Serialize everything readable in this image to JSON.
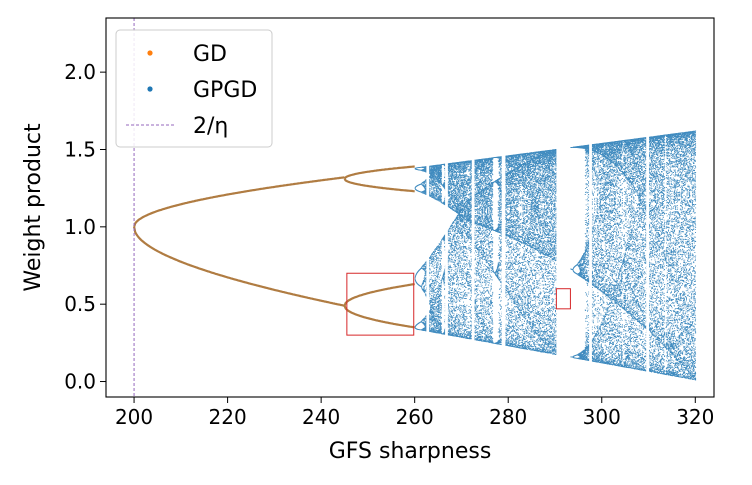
{
  "chart_data": {
    "type": "scatter",
    "title": "",
    "xlabel": "GFS sharpness",
    "ylabel": "Weight product",
    "xlim": [
      194,
      324
    ],
    "ylim": [
      -0.1,
      2.35
    ],
    "x_ticks": [
      200,
      220,
      240,
      260,
      280,
      300,
      320
    ],
    "x_tick_labels": [
      "200",
      "220",
      "240",
      "260",
      "280",
      "300",
      "320"
    ],
    "y_ticks": [
      0.0,
      0.5,
      1.0,
      1.5,
      2.0
    ],
    "y_tick_labels": [
      "0.0",
      "0.5",
      "1.0",
      "1.5",
      "2.0"
    ],
    "grid": false,
    "legend_placement": "upper-left",
    "series": [
      {
        "name": "GD",
        "kind": "scatter",
        "color": "#ff7f0e",
        "x_range": [
          200,
          260
        ],
        "note_points": "period-doubling bifurcation branches"
      },
      {
        "name": "GPGD",
        "kind": "scatter",
        "color": "#1f77b4",
        "x_range": [
          200,
          320
        ]
      },
      {
        "name": "2/η",
        "kind": "vline",
        "color": "#9467bd",
        "x": 200
      }
    ],
    "legend": [
      {
        "label": "GD",
        "color": "#ff7f0e",
        "marker": "dot"
      },
      {
        "label": "GPGD",
        "color": "#1f77b4",
        "marker": "dot"
      },
      {
        "label": "2/η",
        "color": "#9467bd",
        "marker": "dashed-line"
      }
    ],
    "annotations": [
      {
        "type": "rectangle",
        "color": "#d62728",
        "x_range": [
          245.5,
          259.8
        ],
        "y_range": [
          0.3,
          0.7
        ]
      },
      {
        "type": "rectangle",
        "color": "#d62728",
        "x_range": [
          290.3,
          293.3
        ],
        "y_range": [
          0.47,
          0.6
        ]
      }
    ],
    "colors": {
      "gd": "#ff7f0e",
      "gpgd": "#1f77b4",
      "gd_overlay": "#b07c42",
      "vline": "#9467bd",
      "box": "#d62728"
    }
  }
}
